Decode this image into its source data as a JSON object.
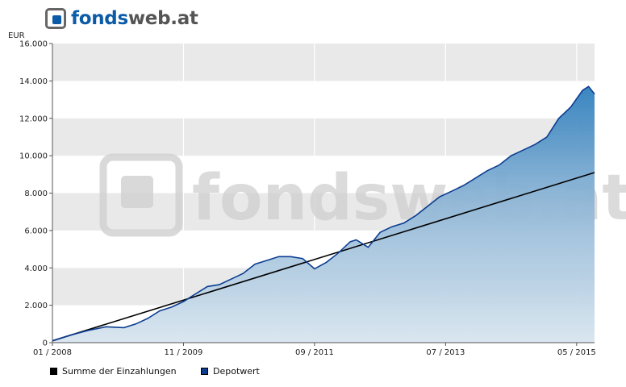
{
  "logo": {
    "part1": "fonds",
    "part2": "web.at"
  },
  "watermark": {
    "text": "fondsweb.at"
  },
  "chart_data": {
    "type": "area",
    "ylabel": "EUR",
    "ylim": [
      0,
      16000
    ],
    "yticks": [
      0,
      2000,
      4000,
      6000,
      8000,
      10000,
      12000,
      14000,
      16000
    ],
    "ytick_labels": [
      "0",
      "2.000",
      "4.000",
      "6.000",
      "8.000",
      "10.000",
      "12.000",
      "14.000",
      "16.000"
    ],
    "xlim": [
      "2008-01",
      "2015-08"
    ],
    "xticks": [
      "2008-01",
      "2009-11",
      "2011-09",
      "2013-07",
      "2015-05"
    ],
    "xtick_labels": [
      "01 / 2008",
      "11 / 2009",
      "09 / 2011",
      "07 / 2013",
      "05 / 2015"
    ],
    "grid": true,
    "legend_position": "bottom-left",
    "series": [
      {
        "name": "Summe der Einzahlungen",
        "type": "line",
        "color": "#000000",
        "x": [
          "2008-01",
          "2015-08"
        ],
        "values": [
          100,
          9100
        ]
      },
      {
        "name": "Depotwert",
        "type": "area",
        "color": "#0d3d91",
        "x": [
          "2008-01",
          "2008-04",
          "2008-07",
          "2008-10",
          "2009-01",
          "2009-03",
          "2009-05",
          "2009-07",
          "2009-09",
          "2009-11",
          "2010-01",
          "2010-03",
          "2010-05",
          "2010-07",
          "2010-09",
          "2010-11",
          "2011-01",
          "2011-03",
          "2011-05",
          "2011-07",
          "2011-09",
          "2011-11",
          "2012-01",
          "2012-03",
          "2012-04",
          "2012-06",
          "2012-08",
          "2012-10",
          "2012-12",
          "2013-02",
          "2013-04",
          "2013-06",
          "2013-08",
          "2013-10",
          "2013-12",
          "2014-02",
          "2014-04",
          "2014-06",
          "2014-08",
          "2014-10",
          "2014-12",
          "2015-02",
          "2015-04",
          "2015-06",
          "2015-07",
          "2015-08"
        ],
        "values": [
          100,
          400,
          650,
          850,
          800,
          1000,
          1300,
          1700,
          1900,
          2200,
          2600,
          3000,
          3100,
          3400,
          3700,
          4200,
          4400,
          4600,
          4600,
          4500,
          3950,
          4300,
          4800,
          5400,
          5500,
          5100,
          5900,
          6200,
          6400,
          6800,
          7300,
          7800,
          8100,
          8400,
          8800,
          9200,
          9500,
          10000,
          10300,
          10600,
          11000,
          12000,
          12600,
          13500,
          13700,
          13300
        ]
      }
    ]
  },
  "legend": [
    {
      "label": "Summe der Einzahlungen",
      "color": "#000000"
    },
    {
      "label": "Depotwert",
      "color": "#0d3d91"
    }
  ]
}
